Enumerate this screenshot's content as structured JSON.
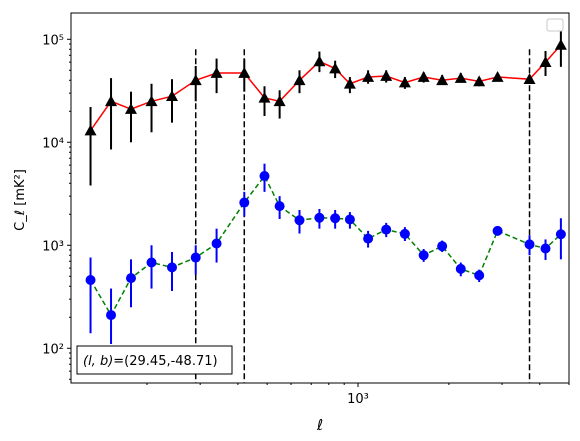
{
  "chart_data": {
    "type": "line",
    "xlabel": "ℓ",
    "ylabel": "C_ℓ  [mK²]",
    "xscale": "log",
    "yscale": "log",
    "xlim": [
      112,
      5000
    ],
    "ylim": [
      46,
      180000
    ],
    "x_ticks": [
      {
        "value": 1000,
        "label": "10³"
      }
    ],
    "y_ticks": [
      {
        "value": 100,
        "label": "10²"
      },
      {
        "value": 1000,
        "label": "10³"
      },
      {
        "value": 10000,
        "label": "10⁴"
      },
      {
        "value": 100000,
        "label": "10⁵"
      }
    ],
    "annotation": "(l, b)=(29.45,-48.71)",
    "annotation_parts": {
      "lhs": "(l, b)",
      "rhs": "=(29.45,-48.71)"
    },
    "legend_placement": "top-right",
    "vlines": {
      "x": [
        290,
        420,
        3700
      ],
      "y_top": 80000,
      "style": "dashed",
      "color": "#000000"
    },
    "series": [
      {
        "style": "solid",
        "line_color": "#ff0000",
        "marker": "triangle",
        "marker_color": "#000000",
        "points": [
          {
            "x": 130,
            "y": 13000,
            "lo": 3800,
            "hi": 22000
          },
          {
            "x": 152,
            "y": 25000,
            "lo": 8500,
            "hi": 42000
          },
          {
            "x": 177,
            "y": 21000,
            "lo": 10000,
            "hi": 31000
          },
          {
            "x": 207,
            "y": 25000,
            "lo": 12500,
            "hi": 37000
          },
          {
            "x": 242,
            "y": 28000,
            "lo": 15500,
            "hi": 41000
          },
          {
            "x": 290,
            "y": 40000,
            "lo": 25000,
            "hi": 55000
          },
          {
            "x": 340,
            "y": 47000,
            "lo": 30000,
            "hi": 65000
          },
          {
            "x": 420,
            "y": 47000,
            "lo": 31000,
            "hi": 64000
          },
          {
            "x": 490,
            "y": 27000,
            "lo": 18000,
            "hi": 35000
          },
          {
            "x": 550,
            "y": 25000,
            "lo": 17000,
            "hi": 32000
          },
          {
            "x": 640,
            "y": 40000,
            "lo": 30000,
            "hi": 50000
          },
          {
            "x": 745,
            "y": 61000,
            "lo": 48000,
            "hi": 76000
          },
          {
            "x": 840,
            "y": 52000,
            "lo": 42000,
            "hi": 62000
          },
          {
            "x": 940,
            "y": 37000,
            "lo": 30000,
            "hi": 43000
          },
          {
            "x": 1080,
            "y": 43000,
            "lo": 37000,
            "hi": 50000
          },
          {
            "x": 1240,
            "y": 44000,
            "lo": 38000,
            "hi": 50000
          },
          {
            "x": 1430,
            "y": 38000,
            "lo": 33000,
            "hi": 43000
          },
          {
            "x": 1650,
            "y": 43000,
            "lo": 38000,
            "hi": 48000
          },
          {
            "x": 1900,
            "y": 40000,
            "lo": 36000,
            "hi": 45000
          },
          {
            "x": 2190,
            "y": 42000,
            "lo": 38000,
            "hi": 47000
          },
          {
            "x": 2520,
            "y": 39000,
            "lo": 35000,
            "hi": 43000
          },
          {
            "x": 2900,
            "y": 43000,
            "lo": 39000,
            "hi": 47000
          },
          {
            "x": 3700,
            "y": 41000,
            "lo": 37000,
            "hi": 45000
          },
          {
            "x": 4180,
            "y": 60000,
            "lo": 44000,
            "hi": 77000
          },
          {
            "x": 4700,
            "y": 88000,
            "lo": 54000,
            "hi": 120000
          }
        ]
      },
      {
        "style": "dashed",
        "line_color": "#008000",
        "marker": "circle",
        "marker_color": "#0000ff",
        "points": [
          {
            "x": 130,
            "y": 460,
            "lo": 140,
            "hi": 760
          },
          {
            "x": 152,
            "y": 210,
            "lo": 110,
            "hi": 380
          },
          {
            "x": 177,
            "y": 480,
            "lo": 250,
            "hi": 730
          },
          {
            "x": 207,
            "y": 680,
            "lo": 380,
            "hi": 1000
          },
          {
            "x": 242,
            "y": 610,
            "lo": 360,
            "hi": 860
          },
          {
            "x": 290,
            "y": 760,
            "lo": 520,
            "hi": 1000
          },
          {
            "x": 340,
            "y": 1040,
            "lo": 680,
            "hi": 1450
          },
          {
            "x": 420,
            "y": 2600,
            "lo": 1900,
            "hi": 3300
          },
          {
            "x": 490,
            "y": 4700,
            "lo": 3300,
            "hi": 6200
          },
          {
            "x": 550,
            "y": 2400,
            "lo": 1800,
            "hi": 3000
          },
          {
            "x": 640,
            "y": 1750,
            "lo": 1300,
            "hi": 2200
          },
          {
            "x": 745,
            "y": 1850,
            "lo": 1450,
            "hi": 2250
          },
          {
            "x": 840,
            "y": 1830,
            "lo": 1450,
            "hi": 2200
          },
          {
            "x": 940,
            "y": 1780,
            "lo": 1450,
            "hi": 2100
          },
          {
            "x": 1080,
            "y": 1160,
            "lo": 950,
            "hi": 1380
          },
          {
            "x": 1240,
            "y": 1420,
            "lo": 1200,
            "hi": 1650
          },
          {
            "x": 1430,
            "y": 1290,
            "lo": 1100,
            "hi": 1500
          },
          {
            "x": 1650,
            "y": 800,
            "lo": 690,
            "hi": 920
          },
          {
            "x": 1900,
            "y": 980,
            "lo": 860,
            "hi": 1110
          },
          {
            "x": 2190,
            "y": 590,
            "lo": 500,
            "hi": 680
          },
          {
            "x": 2520,
            "y": 510,
            "lo": 440,
            "hi": 580
          },
          {
            "x": 2900,
            "y": 1380,
            "lo": 1250,
            "hi": 1520
          },
          {
            "x": 3700,
            "y": 1020,
            "lo": 800,
            "hi": 1250
          },
          {
            "x": 4180,
            "y": 930,
            "lo": 720,
            "hi": 1140
          },
          {
            "x": 4700,
            "y": 1280,
            "lo": 730,
            "hi": 1830
          }
        ]
      }
    ]
  }
}
